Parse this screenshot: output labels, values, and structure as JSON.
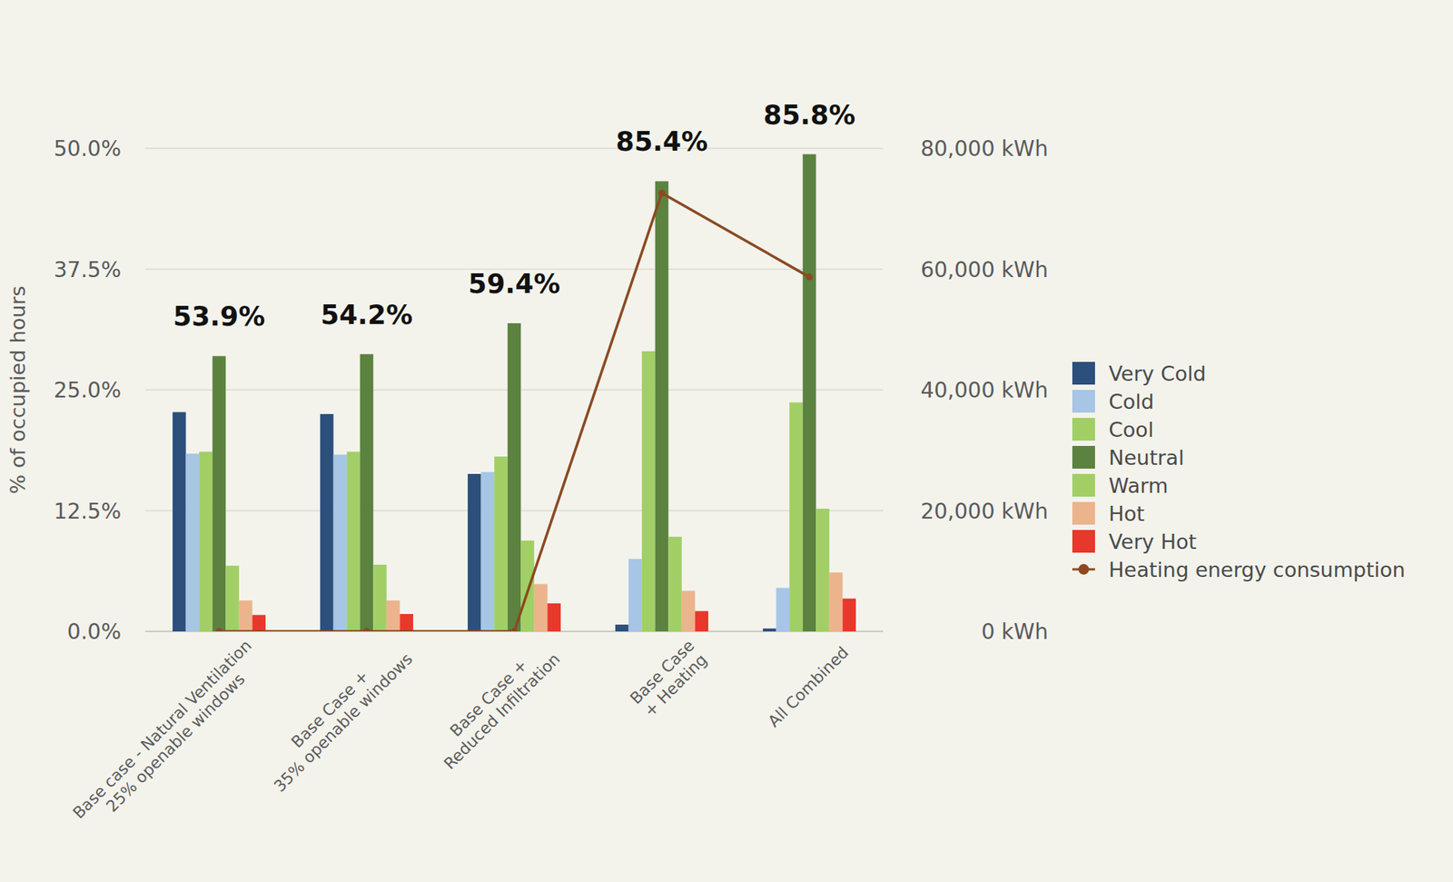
{
  "chart_data": {
    "type": "bar",
    "y_label": "% of occupied hours",
    "categories": [
      "Base case - Natural Ventilation\n25% openable windows",
      "Base Case +\n35% openable windows",
      "Base Case +\nReduced Infiltration",
      "Base Case\n+ Heating",
      "All Combined"
    ],
    "series": [
      {
        "name": "Very Cold",
        "color": "#2c4f7c",
        "values": [
          22.7,
          22.5,
          16.3,
          0.7,
          0.3
        ]
      },
      {
        "name": "Cold",
        "color": "#a7c5e5",
        "values": [
          18.4,
          18.3,
          16.5,
          7.5,
          4.5
        ]
      },
      {
        "name": "Cool",
        "color": "#a1cf65",
        "values": [
          18.6,
          18.6,
          18.1,
          29.0,
          23.7
        ]
      },
      {
        "name": "Neutral",
        "color": "#5c8240",
        "values": [
          28.5,
          28.7,
          31.9,
          46.6,
          49.4
        ]
      },
      {
        "name": "Warm",
        "color": "#a1cf65",
        "values": [
          6.8,
          6.9,
          9.4,
          9.8,
          12.7
        ]
      },
      {
        "name": "Hot",
        "color": "#ecb48d",
        "values": [
          3.2,
          3.2,
          4.9,
          4.2,
          6.1
        ]
      },
      {
        "name": "Very Hot",
        "color": "#e8382b",
        "values": [
          1.7,
          1.8,
          2.9,
          2.1,
          3.4
        ]
      },
      {
        "name": "Heating energy consumption",
        "color": "#8b4a22",
        "type": "line",
        "axis": "y2",
        "marker": "circle",
        "values": [
          0,
          0,
          0,
          72600,
          58700
        ]
      }
    ],
    "ylim": [
      0,
      50
    ],
    "yticks": [
      {
        "value": 0,
        "label": "0.0%"
      },
      {
        "value": 12.5,
        "label": "12.5%"
      },
      {
        "value": 25,
        "label": "25.0%"
      },
      {
        "value": 37.5,
        "label": "37.5%"
      },
      {
        "value": 50,
        "label": "50.0%"
      }
    ],
    "y2lim": [
      0,
      80000
    ],
    "y2ticks": [
      {
        "value": 0,
        "label": "0 kWh"
      },
      {
        "value": 20000,
        "label": "20,000 kWh"
      },
      {
        "value": 40000,
        "label": "40,000 kWh"
      },
      {
        "value": 60000,
        "label": "60,000 kWh"
      },
      {
        "value": 80000,
        "label": "80,000 kWh"
      }
    ],
    "grid": true,
    "legend": "right",
    "annotations": [
      {
        "x": "Base case - Natural Ventilation\n25% openable windows",
        "text": "53.9%"
      },
      {
        "x": "Base Case +\n35% openable windows",
        "text": "54.2%"
      },
      {
        "x": "Base Case +\nReduced Infiltration",
        "text": "59.4%"
      },
      {
        "x": "Base Case\n+ Heating",
        "text": "85.4%"
      },
      {
        "x": "All Combined",
        "text": "85.8%"
      }
    ]
  }
}
